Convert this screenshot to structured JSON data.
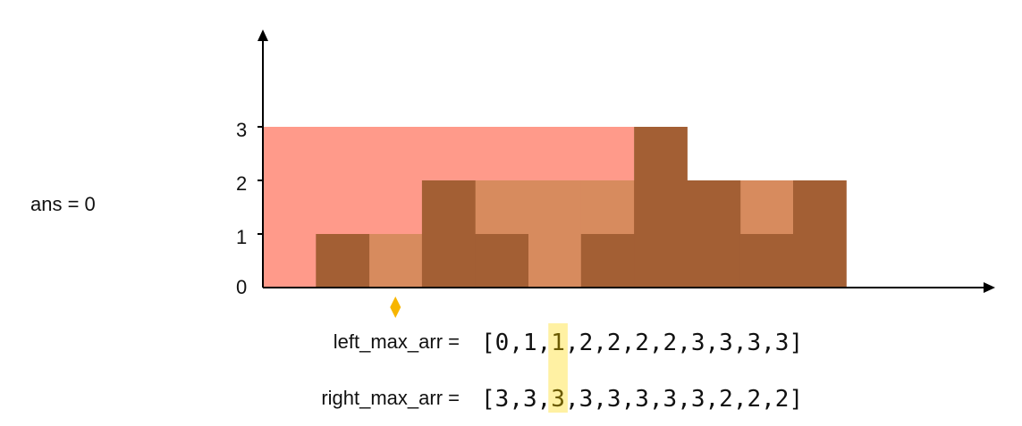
{
  "ans_label": "ans = 0",
  "y_ticks": [
    "0",
    "1",
    "2",
    "3"
  ],
  "heights": [
    0,
    1,
    0,
    2,
    1,
    0,
    1,
    3,
    2,
    1,
    2
  ],
  "left_max": {
    "label": "left_max_arr = ",
    "values": [
      "0",
      "1",
      "1",
      "2",
      "2",
      "2",
      "2",
      "3",
      "3",
      "3",
      "3"
    ]
  },
  "right_max": {
    "label": "right_max_arr = ",
    "values": [
      "3",
      "3",
      "3",
      "3",
      "3",
      "3",
      "3",
      "3",
      "2",
      "2",
      "2"
    ]
  },
  "current_index": 2,
  "colors": {
    "bar": "#a35f34",
    "water": "#d78b5e",
    "left_region": "#ff9a8a",
    "right_region": "#a0e58a",
    "highlight": "#fff1a3",
    "marker": "#f7b500",
    "axis": "#000000"
  }
}
